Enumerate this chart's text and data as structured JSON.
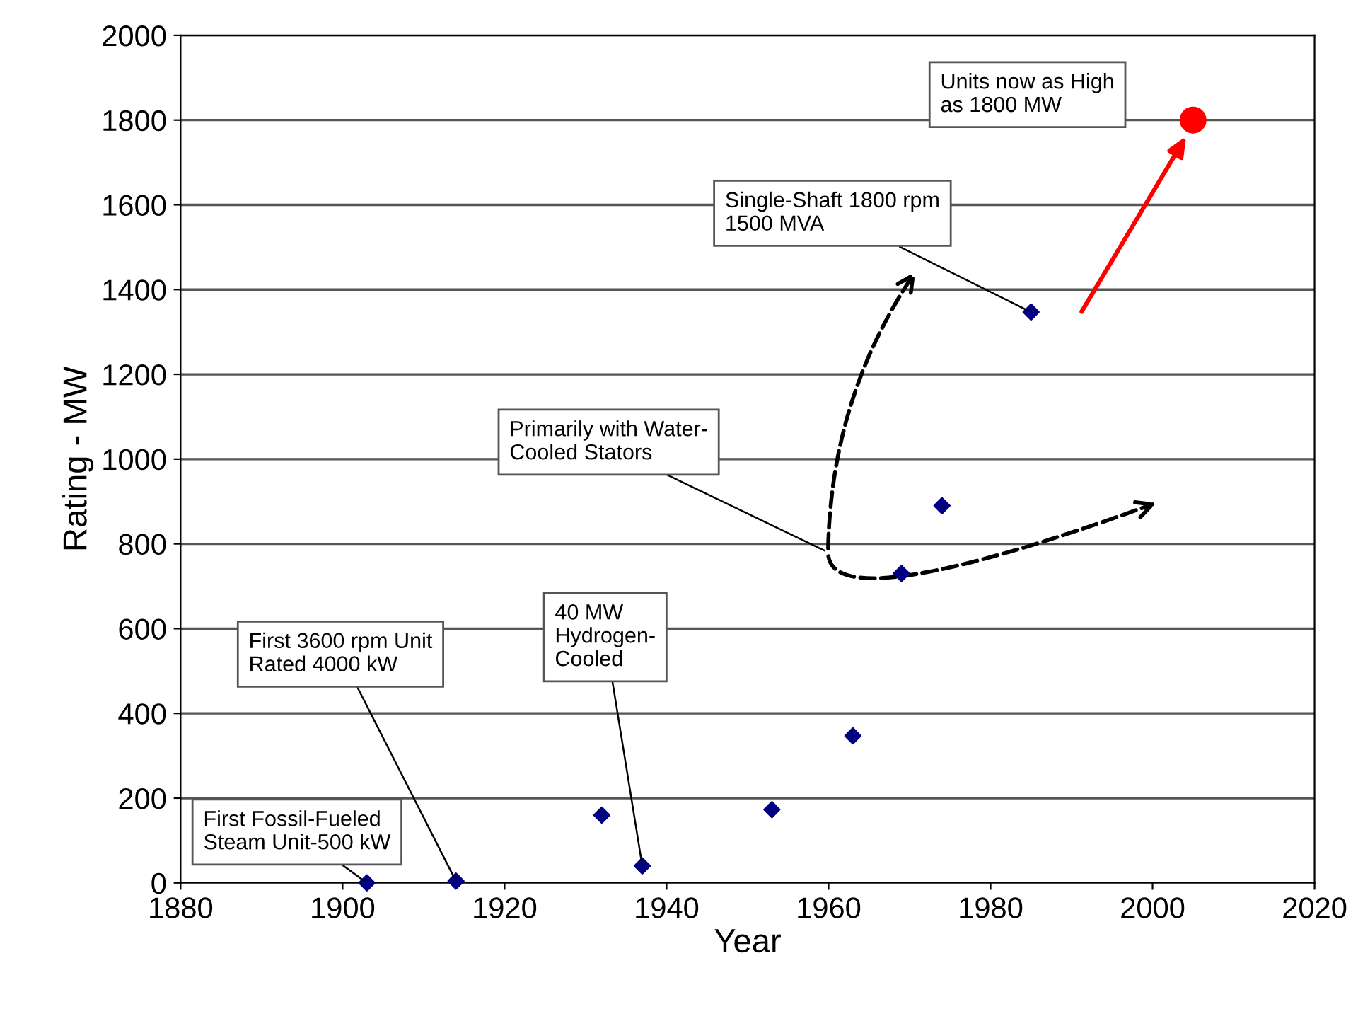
{
  "chart_data": {
    "type": "scatter",
    "xlabel": "Year",
    "ylabel": "Rating - MW",
    "xlim": [
      1880,
      2020
    ],
    "xticks": [
      1880,
      1900,
      1920,
      1940,
      1960,
      1980,
      2000,
      2020
    ],
    "ylim": [
      0,
      2000
    ],
    "yticks": [
      0,
      200,
      400,
      600,
      800,
      1000,
      1200,
      1400,
      1600,
      1800,
      2000
    ],
    "grid": "y",
    "marker": "diamond",
    "series": [
      {
        "color": "#000080",
        "x": [
          1903,
          1914,
          1932,
          1937,
          1953,
          1963,
          1969,
          1974,
          1985
        ],
        "values": [
          0,
          4,
          160,
          40,
          173,
          347,
          730,
          890,
          1347
        ]
      },
      {
        "color": "#ff0000",
        "marker": "circle",
        "x": [
          2005
        ],
        "values": [
          1800
        ]
      }
    ],
    "annotations": [
      {
        "text": "First Fossil-Fueled\nSteam Unit-500 kW",
        "x": 1903,
        "y": 0
      },
      {
        "text": "First 3600 rpm Unit\nRated 4000 kW",
        "x": 1914,
        "y": 4
      },
      {
        "text": "40 MW\nHydrogen-\nCooled",
        "x": 1937,
        "y": 40
      },
      "Primarily with Water-\nCooled Stators",
      {
        "text": "Single-Shaft 1800 rpm\n1500 MVA",
        "x": 1985,
        "y": 1347
      },
      "Units now as High\nas 1800 MW"
    ]
  }
}
